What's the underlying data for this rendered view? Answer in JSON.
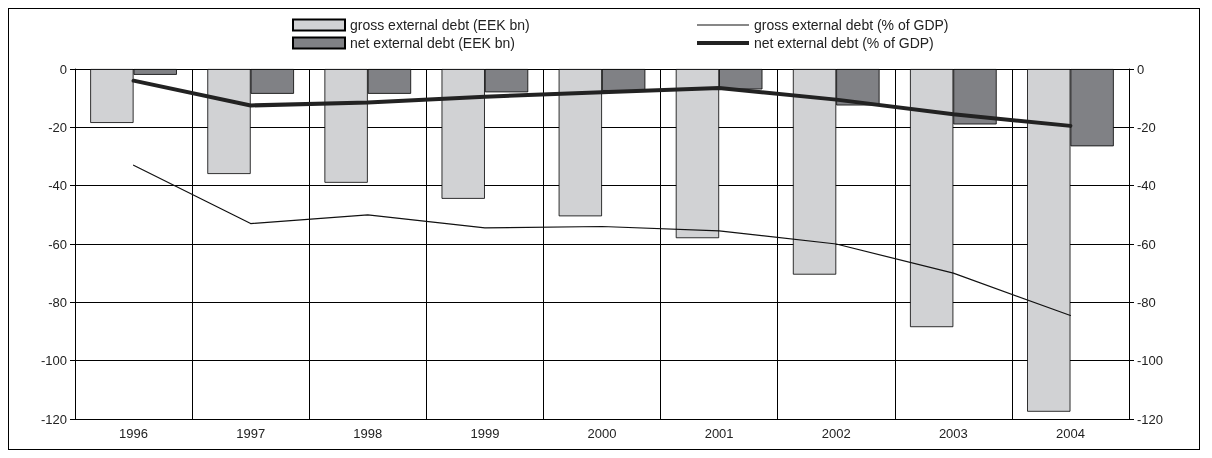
{
  "chart_data": {
    "type": "bar",
    "categories": [
      "1996",
      "1997",
      "1998",
      "1999",
      "2000",
      "2001",
      "2002",
      "2003",
      "2004"
    ],
    "series": [
      {
        "name": "gross external debt (EEK bn)",
        "color": "#d1d2d4",
        "values": [
          -18.5,
          -36,
          -39,
          -44.5,
          -50.5,
          -58,
          -70.5,
          -88.5,
          -117.5
        ]
      },
      {
        "name": "net external debt (EEK bn)",
        "color": "#808185",
        "values": [
          -2,
          -8.5,
          -8.5,
          -8,
          -7.5,
          -7,
          -12.5,
          -19,
          -26.5
        ]
      },
      {
        "name": "gross external debt (% of GDP)",
        "type": "line",
        "color": "#111111",
        "line_style": "solid",
        "values": [
          -33,
          -53,
          -50,
          -54.5,
          -54,
          -55.5,
          -60,
          -70,
          -84.5
        ]
      },
      {
        "name": "net external debt (% of GDP)",
        "type": "line",
        "color": "#222222",
        "line_style": "solid",
        "values": [
          -4,
          -12.5,
          -11.5,
          -9.5,
          -8,
          -6.5,
          -10.5,
          -15.5,
          -19.5
        ]
      }
    ],
    "ylim": [
      -120,
      0
    ],
    "yticks": [
      -120,
      -100,
      -80,
      -60,
      -40,
      -20,
      0
    ],
    "y2lim": [
      -120,
      0
    ],
    "y2ticks": [
      -120,
      -100,
      -80,
      -60,
      -40,
      -20,
      0
    ],
    "grid": true,
    "legend": "top",
    "marker": "none"
  }
}
